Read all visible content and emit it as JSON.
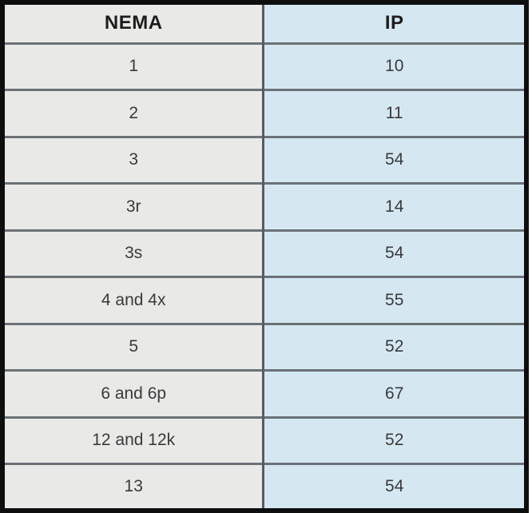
{
  "chart_data": {
    "type": "table",
    "title": "",
    "columns": [
      "NEMA",
      "IP"
    ],
    "rows": [
      [
        "1",
        "10"
      ],
      [
        "2",
        "11"
      ],
      [
        "3",
        "54"
      ],
      [
        "3r",
        "14"
      ],
      [
        "3s",
        "54"
      ],
      [
        "4 and 4x",
        "55"
      ],
      [
        "5",
        "52"
      ],
      [
        "6 and 6p",
        "67"
      ],
      [
        "12 and 12k",
        "52"
      ],
      [
        "13",
        "54"
      ]
    ]
  },
  "colors": {
    "outer_border": "#0e0e0e",
    "left_column_bg": "#e9e9e7",
    "right_column_bg": "#d5e8f2",
    "horizontal_gridline": "#6b7177",
    "vertical_gridline": "#565c62",
    "header_text": "#1d1d1d",
    "cell_text": "#3a3a3a",
    "page_background": "#ffffff"
  }
}
